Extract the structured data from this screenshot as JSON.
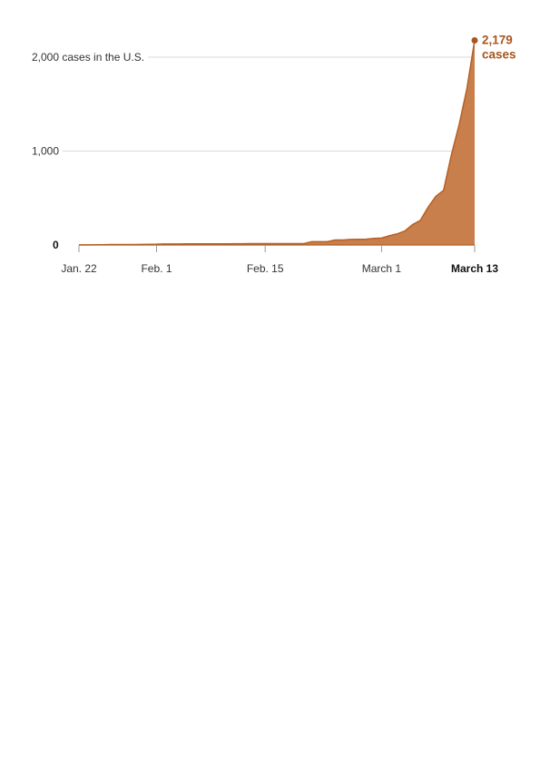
{
  "chart_data": {
    "type": "area",
    "title": "",
    "xlabel": "",
    "ylabel": "",
    "ylim": [
      0,
      2000
    ],
    "grid": true,
    "colors": {
      "fill": "#c97f4b",
      "line": "#b55f24",
      "annotation": "#a9561e",
      "grid": "#d9d9d9"
    },
    "y_ticks": [
      {
        "value": 0,
        "label": "0"
      },
      {
        "value": 1000,
        "label": "1,000"
      },
      {
        "value": 2000,
        "label": "2,000 cases in the U.S."
      }
    ],
    "x_ticks": [
      {
        "date": "2020-01-22",
        "label": "Jan. 22"
      },
      {
        "date": "2020-02-01",
        "label": "Feb. 1"
      },
      {
        "date": "2020-02-15",
        "label": "Feb. 15"
      },
      {
        "date": "2020-03-01",
        "label": "March 1"
      },
      {
        "date": "2020-03-13",
        "label": "March 13"
      }
    ],
    "series": [
      {
        "x": [
          "2020-01-22",
          "2020-01-23",
          "2020-01-24",
          "2020-01-25",
          "2020-01-26",
          "2020-01-27",
          "2020-01-28",
          "2020-01-29",
          "2020-01-30",
          "2020-01-31",
          "2020-02-01",
          "2020-02-02",
          "2020-02-03",
          "2020-02-04",
          "2020-02-05",
          "2020-02-06",
          "2020-02-07",
          "2020-02-08",
          "2020-02-09",
          "2020-02-10",
          "2020-02-11",
          "2020-02-12",
          "2020-02-13",
          "2020-02-14",
          "2020-02-15",
          "2020-02-16",
          "2020-02-17",
          "2020-02-18",
          "2020-02-19",
          "2020-02-20",
          "2020-02-21",
          "2020-02-22",
          "2020-02-23",
          "2020-02-24",
          "2020-02-25",
          "2020-02-26",
          "2020-02-27",
          "2020-02-28",
          "2020-02-29",
          "2020-03-01",
          "2020-03-02",
          "2020-03-03",
          "2020-03-04",
          "2020-03-05",
          "2020-03-06",
          "2020-03-07",
          "2020-03-08",
          "2020-03-09",
          "2020-03-10",
          "2020-03-11",
          "2020-03-12",
          "2020-03-13"
        ],
        "values": [
          1,
          1,
          2,
          2,
          5,
          5,
          5,
          5,
          6,
          7,
          8,
          11,
          11,
          11,
          12,
          12,
          12,
          12,
          12,
          12,
          13,
          13,
          14,
          15,
          15,
          15,
          15,
          15,
          15,
          15,
          35,
          35,
          35,
          53,
          53,
          59,
          60,
          62,
          70,
          74,
          98,
          118,
          149,
          217,
          262,
          402,
          518,
          583,
          959,
          1281,
          1663,
          2179
        ]
      }
    ],
    "annotation": {
      "value": "2,179",
      "label": "cases"
    }
  }
}
